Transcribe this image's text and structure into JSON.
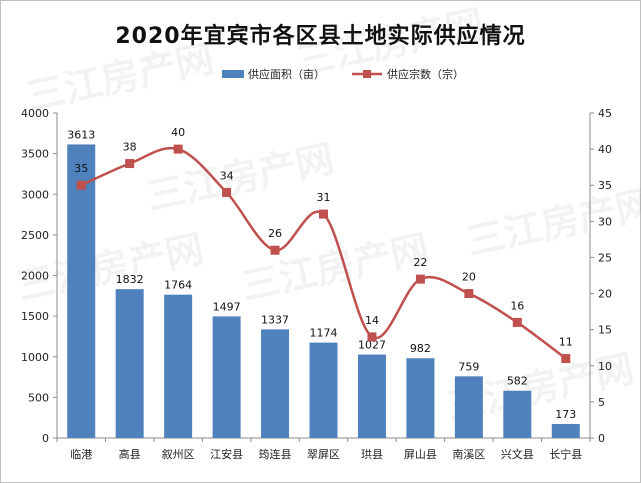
{
  "chart_data": {
    "type": "bar",
    "title": "2020年宜宾市各区县土地实际供应情况",
    "categories": [
      "临港",
      "高县",
      "叙州区",
      "江安县",
      "筠连县",
      "翠屏区",
      "珙县",
      "屏山县",
      "南溪区",
      "兴文县",
      "长宁县"
    ],
    "series": [
      {
        "name": "供应面积（亩）",
        "type": "bar",
        "axis": "left",
        "color": "#4f81bd",
        "values": [
          3613,
          1832,
          1764,
          1497,
          1337,
          1174,
          1027,
          982,
          759,
          582,
          173
        ]
      },
      {
        "name": "供应宗数（宗）",
        "type": "line",
        "axis": "right",
        "color": "#c0504d",
        "values": [
          35,
          38,
          40,
          34,
          26,
          31,
          14,
          22,
          20,
          16,
          11
        ]
      }
    ],
    "y_left": {
      "min": 0,
      "max": 4000,
      "step": 500
    },
    "y_right": {
      "min": 0,
      "max": 45,
      "step": 5
    },
    "legend_position": "top",
    "grid": false,
    "watermark": "三江房产网"
  }
}
